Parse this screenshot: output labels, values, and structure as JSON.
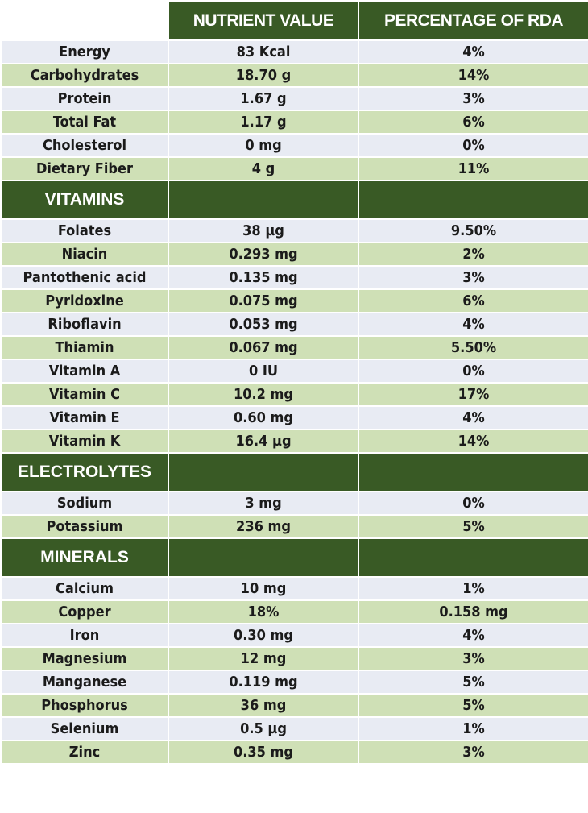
{
  "header": {
    "nutrient_value": "NUTRIENT VALUE",
    "percentage_of_rda": "PERCENTAGE OF RDA"
  },
  "general": [
    {
      "name": "Energy",
      "value": "83 Kcal",
      "rda": "4%"
    },
    {
      "name": "Carbohydrates",
      "value": "18.70 g",
      "rda": "14%"
    },
    {
      "name": "Protein",
      "value": "1.67 g",
      "rda": "3%"
    },
    {
      "name": "Total Fat",
      "value": "1.17 g",
      "rda": "6%"
    },
    {
      "name": "Cholesterol",
      "value": "0 mg",
      "rda": "0%"
    },
    {
      "name": "Dietary Fiber",
      "value": "4 g",
      "rda": "11%"
    }
  ],
  "vitamins": {
    "title": "VITAMINS",
    "rows": [
      {
        "name": "Folates",
        "value": "38 µg",
        "rda": "9.50%"
      },
      {
        "name": "Niacin",
        "value": "0.293 mg",
        "rda": "2%"
      },
      {
        "name": "Pantothenic  acid",
        "value": "0.135 mg",
        "rda": "3%"
      },
      {
        "name": "Pyridoxine",
        "value": "0.075 mg",
        "rda": "6%"
      },
      {
        "name": "Riboflavin",
        "value": "0.053 mg",
        "rda": "4%"
      },
      {
        "name": "Thiamin",
        "value": "0.067 mg",
        "rda": "5.50%"
      },
      {
        "name": "Vitamin A",
        "value": "0 IU",
        "rda": "0%"
      },
      {
        "name": "Vitamin C",
        "value": "10.2 mg",
        "rda": "17%"
      },
      {
        "name": "Vitamin E",
        "value": "0.60 mg",
        "rda": "4%"
      },
      {
        "name": "Vitamin K",
        "value": "16.4 µg",
        "rda": "14%"
      }
    ]
  },
  "electrolytes": {
    "title": "ELECTROLYTES",
    "rows": [
      {
        "name": "Sodium",
        "value": "3 mg",
        "rda": "0%"
      },
      {
        "name": "Potassium",
        "value": "236 mg",
        "rda": "5%"
      }
    ]
  },
  "minerals": {
    "title": "MINERALS",
    "rows": [
      {
        "name": "Calcium",
        "value": "10 mg",
        "rda": "1%"
      },
      {
        "name": "Copper",
        "value": "18%",
        "rda": "0.158 mg"
      },
      {
        "name": "Iron",
        "value": "0.30 mg",
        "rda": "4%"
      },
      {
        "name": "Magnesium",
        "value": "12 mg",
        "rda": "3%"
      },
      {
        "name": "Manganese",
        "value": "0.119 mg",
        "rda": "5%"
      },
      {
        "name": "Phosphorus",
        "value": "36 mg",
        "rda": "5%"
      },
      {
        "name": "Selenium",
        "value": "0.5 µg",
        "rda": "1%"
      },
      {
        "name": "Zinc",
        "value": "0.35 mg",
        "rda": "3%"
      }
    ]
  },
  "colors": {
    "header_green": "#395a25",
    "row_light": "#e8ebf3",
    "row_green": "#cfe0b6"
  }
}
